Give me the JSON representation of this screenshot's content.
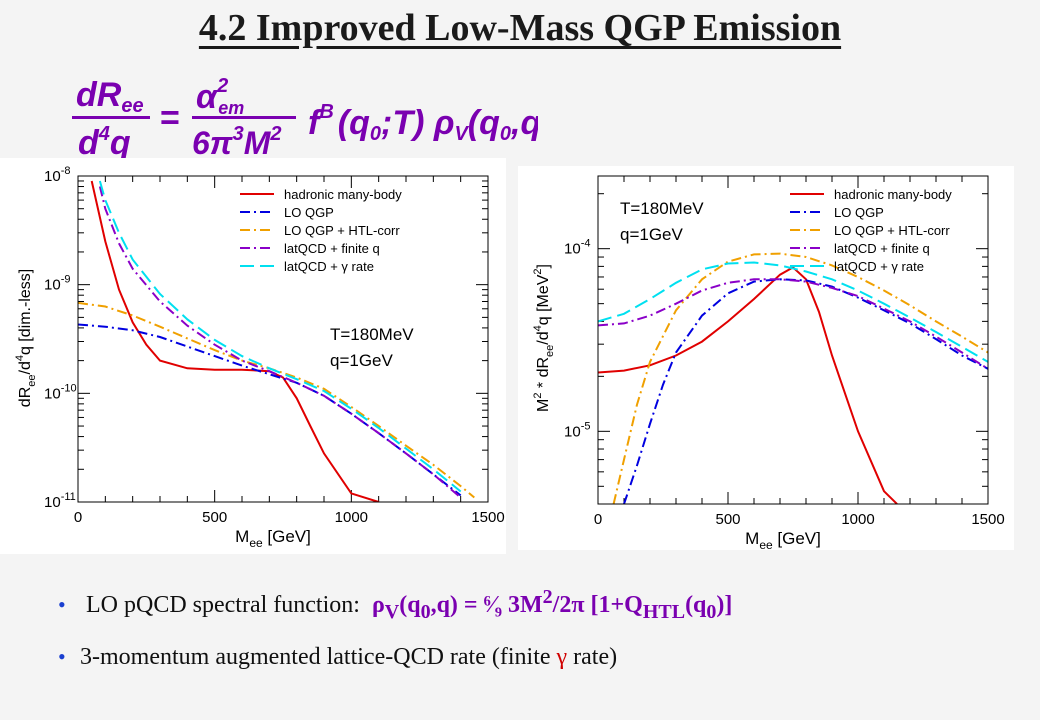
{
  "title": "4.2 Improved Low-Mass QGP Emission",
  "equation": {
    "lhs_num": "dR",
    "lhs_num_sub": "ee",
    "lhs_den": "d",
    "lhs_den_sup": "4",
    "lhs_den_var": "q",
    "rhs_num": "α",
    "rhs_num_sup": "2",
    "rhs_num_sub": "em",
    "rhs_den": "6π",
    "rhs_den_sup1": "3",
    "rhs_den_var": "M",
    "rhs_den_sup2": "2",
    "tail": "f",
    "tail_sup": "B",
    "tail_args": "(q",
    "tail_sub0": "0",
    "tail_mid": ";T) ρ",
    "tail_subV": "V",
    "tail_end": "(q",
    "tail_sub0b": "0",
    "tail_close": ",q)",
    "color": "#7a00b0"
  },
  "legend_entries": [
    "hadronic many-body",
    "LO QGP",
    "LO QGP + HTL-corr",
    "latQCD + finite q",
    "latQCD + γ rate"
  ],
  "series_colors": [
    "#e00000",
    "#0000e0",
    "#f0a000",
    "#8a00c8",
    "#00e0f0"
  ],
  "bullets": {
    "b1_text": "LO pQCD spectral function:",
    "b1_formula_a": "ρ",
    "b1_formula_sub_a": "V",
    "b1_formula_b": "(q",
    "b1_formula_sub_b": "0",
    "b1_formula_c": ",q) = ⁶⁄₉ 3M",
    "b1_formula_sup": "2",
    "b1_formula_d": "/2π [1+Q",
    "b1_formula_sub_c": "HTL",
    "b1_formula_e": "(q",
    "b1_formula_sub_d": "0",
    "b1_formula_f": ")]",
    "b2_text_a": "3-momentum augmented lattice-QCD rate (finite ",
    "b2_gamma": "γ",
    "b2_text_b": " rate)"
  },
  "chart_data": [
    {
      "type": "line",
      "x_log": false,
      "y_log": true,
      "xlim": [
        0,
        1500
      ],
      "ylim": [
        1e-11,
        1e-08
      ],
      "xticks": [
        "0",
        "500",
        "1000",
        "1500"
      ],
      "yticks": [
        {
          "base": "10",
          "exp": "-11"
        },
        {
          "base": "10",
          "exp": "-10"
        },
        {
          "base": "10",
          "exp": "-9"
        },
        {
          "base": "10",
          "exp": "-8"
        }
      ],
      "xlabel": {
        "main": "M",
        "sub": "ee",
        "rest": " [GeV]"
      },
      "ylabel": {
        "a": "dR",
        "sub": "ee",
        "b": "/d",
        "sup": "4",
        "c": "q   [dim.-less]"
      },
      "annotation": [
        "T=180MeV",
        "q=1GeV"
      ],
      "legend_position": "top-right",
      "series": [
        {
          "name": "hadronic many-body",
          "x": [
            50,
            100,
            150,
            200,
            250,
            300,
            400,
            500,
            600,
            700,
            750,
            800,
            850,
            900,
            1000,
            1100
          ],
          "y": [
            9e-09,
            2.5e-09,
            9e-10,
            4.5e-10,
            2.8e-10,
            2e-10,
            1.7e-10,
            1.65e-10,
            1.65e-10,
            1.6e-10,
            1.4e-10,
            9e-11,
            5e-11,
            2.8e-11,
            1.2e-11,
            1e-11
          ]
        },
        {
          "name": "LO QGP",
          "x": [
            0,
            100,
            200,
            300,
            400,
            500,
            600,
            700,
            800,
            900,
            1000,
            1100,
            1200,
            1300,
            1400
          ],
          "y": [
            4.3e-10,
            4.1e-10,
            3.8e-10,
            3.3e-10,
            2.7e-10,
            2.2e-10,
            1.8e-10,
            1.5e-10,
            1.25e-10,
            9.5e-11,
            6.5e-11,
            4.3e-11,
            2.8e-11,
            1.8e-11,
            1.15e-11
          ]
        },
        {
          "name": "LO QGP + HTL-corr",
          "x": [
            0,
            100,
            200,
            300,
            400,
            500,
            600,
            700,
            800,
            900,
            1000,
            1100,
            1200,
            1300,
            1400,
            1450
          ],
          "y": [
            6.8e-10,
            6.3e-10,
            5.2e-10,
            4.1e-10,
            3.2e-10,
            2.5e-10,
            2e-10,
            1.7e-10,
            1.4e-10,
            1.1e-10,
            7.5e-11,
            5e-11,
            3.3e-11,
            2.2e-11,
            1.4e-11,
            1.1e-11
          ]
        },
        {
          "name": "latQCD + finite q",
          "x": [
            80,
            100,
            150,
            200,
            300,
            400,
            500,
            600,
            700,
            800,
            900,
            1000,
            1100,
            1200,
            1300,
            1400
          ],
          "y": [
            8e-09,
            5e-09,
            2.4e-09,
            1.4e-09,
            7e-10,
            4.2e-10,
            2.8e-10,
            2e-10,
            1.6e-10,
            1.25e-10,
            9.5e-11,
            6.5e-11,
            4.3e-11,
            2.8e-11,
            1.8e-11,
            1.1e-11
          ]
        },
        {
          "name": "latQCD + γ rate",
          "x": [
            80,
            100,
            150,
            200,
            300,
            400,
            500,
            600,
            700,
            800,
            900,
            1000,
            1100,
            1200,
            1300,
            1400
          ],
          "y": [
            9e-09,
            6e-09,
            3e-09,
            1.7e-09,
            8.2e-10,
            4.8e-10,
            3.1e-10,
            2.2e-10,
            1.7e-10,
            1.35e-10,
            1.05e-10,
            7.2e-11,
            4.8e-11,
            3.1e-11,
            2e-11,
            1.25e-11
          ]
        }
      ]
    },
    {
      "type": "line",
      "x_log": false,
      "y_log": true,
      "xlim": [
        0,
        1500
      ],
      "ylim": [
        4e-06,
        0.00025
      ],
      "xticks": [
        "0",
        "500",
        "1000",
        "1500"
      ],
      "yticks": [
        {
          "base": "10",
          "exp": "-5"
        },
        {
          "base": "10",
          "exp": "-4"
        }
      ],
      "xlabel": {
        "main": "M",
        "sub": "ee",
        "rest": " [GeV]"
      },
      "ylabel": {
        "a": "M",
        "sup1": "2",
        "b": " * dR",
        "sub": "ee",
        "c": "/d",
        "sup2": "4",
        "d": "q   [MeV",
        "sup3": "2",
        "e": "]"
      },
      "annotation": [
        "T=180MeV",
        "q=1GeV"
      ],
      "legend_position": "top-right",
      "series": [
        {
          "name": "hadronic many-body",
          "x": [
            0,
            100,
            200,
            300,
            400,
            500,
            600,
            700,
            750,
            800,
            850,
            900,
            1000,
            1100,
            1150
          ],
          "y": [
            2.1e-05,
            2.15e-05,
            2.3e-05,
            2.6e-05,
            3.1e-05,
            4e-05,
            5.3e-05,
            7.2e-05,
            7.9e-05,
            6.8e-05,
            4.5e-05,
            2.6e-05,
            1e-05,
            4.7e-06,
            4e-06
          ]
        },
        {
          "name": "LO QGP",
          "x": [
            100,
            150,
            200,
            250,
            300,
            400,
            500,
            600,
            700,
            800,
            900,
            1000,
            1100,
            1200,
            1300,
            1400,
            1500
          ],
          "y": [
            4e-06,
            6.5e-06,
            1.1e-05,
            1.8e-05,
            2.7e-05,
            4.3e-05,
            5.7e-05,
            6.6e-05,
            6.8e-05,
            6.7e-05,
            6.2e-05,
            5.4e-05,
            4.6e-05,
            3.9e-05,
            3.2e-05,
            2.6e-05,
            2.2e-05
          ]
        },
        {
          "name": "LO QGP + HTL-corr",
          "x": [
            60,
            100,
            150,
            200,
            300,
            400,
            500,
            600,
            700,
            800,
            900,
            1000,
            1100,
            1200,
            1300,
            1400,
            1500
          ],
          "y": [
            4e-06,
            7e-06,
            1.4e-05,
            2.4e-05,
            4.6e-05,
            6.8e-05,
            8.5e-05,
            9.3e-05,
            9.4e-05,
            9e-05,
            8.1e-05,
            7e-05,
            5.9e-05,
            4.9e-05,
            4e-05,
            3.3e-05,
            2.7e-05
          ]
        },
        {
          "name": "latQCD + finite q",
          "x": [
            0,
            100,
            200,
            300,
            400,
            500,
            600,
            700,
            800,
            900,
            1000,
            1100,
            1200,
            1300,
            1400,
            1500
          ],
          "y": [
            3.8e-05,
            3.9e-05,
            4.3e-05,
            5e-05,
            5.9e-05,
            6.5e-05,
            6.8e-05,
            6.8e-05,
            6.6e-05,
            6.1e-05,
            5.5e-05,
            4.7e-05,
            4e-05,
            3.3e-05,
            2.7e-05,
            2.2e-05
          ]
        },
        {
          "name": "latQCD + γ rate",
          "x": [
            0,
            100,
            200,
            300,
            400,
            500,
            600,
            700,
            800,
            900,
            1000,
            1100,
            1200,
            1300,
            1400,
            1500
          ],
          "y": [
            4e-05,
            4.4e-05,
            5.3e-05,
            6.5e-05,
            7.7e-05,
            8.3e-05,
            8.4e-05,
            8.1e-05,
            7.5e-05,
            6.8e-05,
            5.9e-05,
            5e-05,
            4.2e-05,
            3.5e-05,
            2.9e-05,
            2.4e-05
          ]
        }
      ]
    }
  ]
}
